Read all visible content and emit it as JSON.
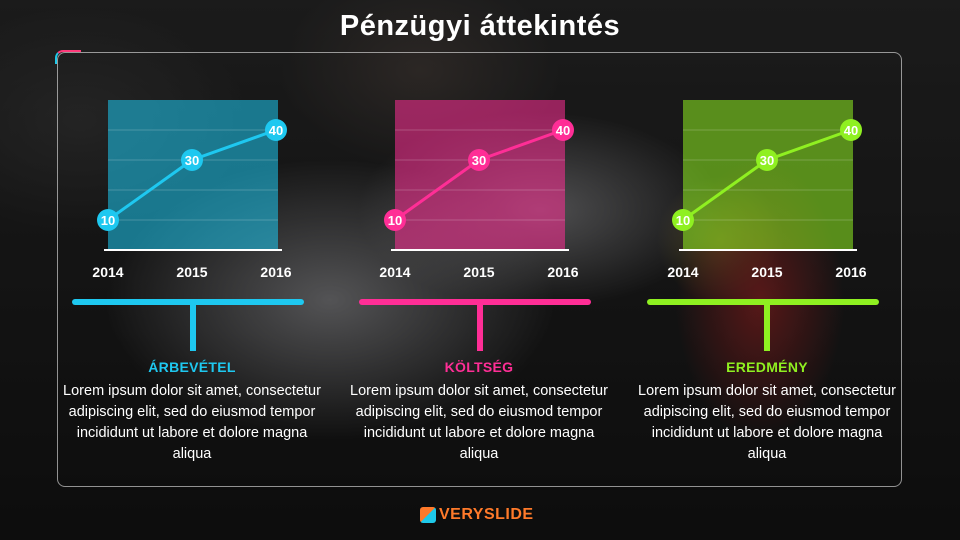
{
  "page": {
    "title": "Pénzügyi áttekintés"
  },
  "panels": [
    {
      "label": "ÁRBEVÉTEL",
      "color": "#1ec8f0",
      "description": "Lorem ipsum dolor sit amet, consectetur adipiscing elit, sed do eiusmod tempor incididunt ut labore et dolore magna aliqua"
    },
    {
      "label": "KÖLTSÉG",
      "color": "#ff2e96",
      "description": "Lorem ipsum dolor sit amet, consectetur adipiscing elit, sed do eiusmod tempor incididunt ut labore et dolore magna aliqua"
    },
    {
      "label": "EREDMÉNY",
      "color": "#8ff021",
      "description": "Lorem ipsum dolor sit amet, consectetur adipiscing elit, sed do eiusmod tempor incididunt ut labore et dolore magna aliqua"
    }
  ],
  "chart_data": [
    {
      "type": "line",
      "x": [
        "2014",
        "2015",
        "2016"
      ],
      "series": [
        {
          "values": [
            10,
            30,
            40
          ]
        }
      ],
      "data_labels": [
        "10",
        "30",
        "40"
      ],
      "ylim": [
        0,
        50
      ],
      "grid": true,
      "color": "#1ec8f0"
    },
    {
      "type": "line",
      "x": [
        "2014",
        "2015",
        "2016"
      ],
      "series": [
        {
          "values": [
            10,
            30,
            40
          ]
        }
      ],
      "data_labels": [
        "10",
        "30",
        "40"
      ],
      "ylim": [
        0,
        50
      ],
      "grid": true,
      "color": "#ff2e96"
    },
    {
      "type": "line",
      "x": [
        "2014",
        "2015",
        "2016"
      ],
      "series": [
        {
          "values": [
            10,
            30,
            40
          ]
        }
      ],
      "data_labels": [
        "10",
        "30",
        "40"
      ],
      "ylim": [
        0,
        50
      ],
      "grid": true,
      "color": "#8ff021"
    }
  ],
  "logo": {
    "text": "VERYSLIDE",
    "icon": "veryslide-logo-icon"
  }
}
